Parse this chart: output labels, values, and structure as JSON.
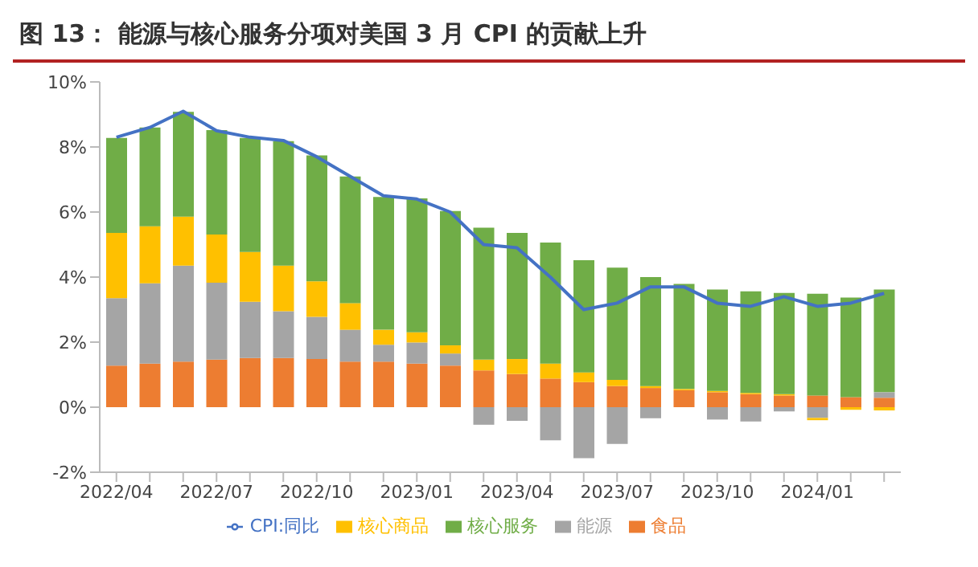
{
  "chart_data": {
    "type": "bar",
    "title": "图 13： 能源与核心服务分项对美国 3 月 CPI 的贡献上升",
    "stacked": true,
    "legend": "bottom",
    "marker": "none",
    "line_style": "solid",
    "categories": [
      "2022/04",
      null,
      null,
      "2022/07",
      null,
      null,
      "2022/10",
      null,
      null,
      "2023/01",
      null,
      null,
      "2023/04",
      null,
      null,
      "2023/07",
      null,
      null,
      "2023/10",
      null,
      null,
      "2024/01",
      null,
      null
    ],
    "ylim": [
      -2,
      10
    ],
    "yticks": [
      {
        "value": -2,
        "label": "-2%"
      },
      {
        "value": 0,
        "label": "0%"
      },
      {
        "value": 2,
        "label": "2%"
      },
      {
        "value": 4,
        "label": "4%"
      },
      {
        "value": 6,
        "label": "6%"
      },
      {
        "value": 8,
        "label": "8%"
      },
      {
        "value": 10,
        "label": "10%"
      }
    ],
    "series": [
      {
        "name": "食品",
        "color": "#ed7d31",
        "values": [
          1.28,
          1.34,
          1.4,
          1.46,
          1.51,
          1.51,
          1.48,
          1.4,
          1.4,
          1.34,
          1.28,
          1.13,
          1.02,
          0.88,
          0.77,
          0.65,
          0.59,
          0.52,
          0.46,
          0.4,
          0.36,
          0.36,
          0.31,
          0.29
        ]
      },
      {
        "name": "能源",
        "color": "#a5a5a5",
        "values": [
          2.07,
          2.47,
          2.95,
          2.37,
          1.73,
          1.44,
          1.3,
          0.98,
          0.52,
          0.65,
          0.37,
          -0.54,
          -0.42,
          -1.02,
          -1.57,
          -1.13,
          -0.34,
          null,
          -0.38,
          -0.44,
          -0.13,
          -0.33,
          null,
          0.17
        ]
      },
      {
        "name": "核心商品",
        "color": "#ffc000",
        "values": [
          2.01,
          1.75,
          1.51,
          1.48,
          1.53,
          1.4,
          1.09,
          0.82,
          0.46,
          0.31,
          0.25,
          0.33,
          0.46,
          0.46,
          0.3,
          0.19,
          0.06,
          0.04,
          0.04,
          0.04,
          0.04,
          -0.07,
          -0.08,
          -0.1
        ]
      },
      {
        "name": "核心服务",
        "color": "#70ad47",
        "values": [
          2.92,
          3.04,
          3.22,
          3.21,
          3.51,
          3.83,
          3.87,
          3.89,
          4.08,
          4.12,
          4.13,
          4.06,
          3.88,
          3.72,
          3.45,
          3.45,
          3.35,
          3.23,
          3.12,
          3.12,
          3.11,
          3.13,
          3.06,
          3.16
        ]
      },
      {
        "name": "CPI:同比",
        "type": "line",
        "color": "#4472c4",
        "values": [
          8.3,
          8.6,
          9.1,
          8.5,
          8.3,
          8.2,
          7.7,
          7.1,
          6.5,
          6.4,
          6.0,
          5.0,
          4.9,
          4.0,
          3.0,
          3.2,
          3.7,
          3.7,
          3.2,
          3.1,
          3.4,
          3.1,
          3.2,
          3.5
        ]
      }
    ]
  }
}
